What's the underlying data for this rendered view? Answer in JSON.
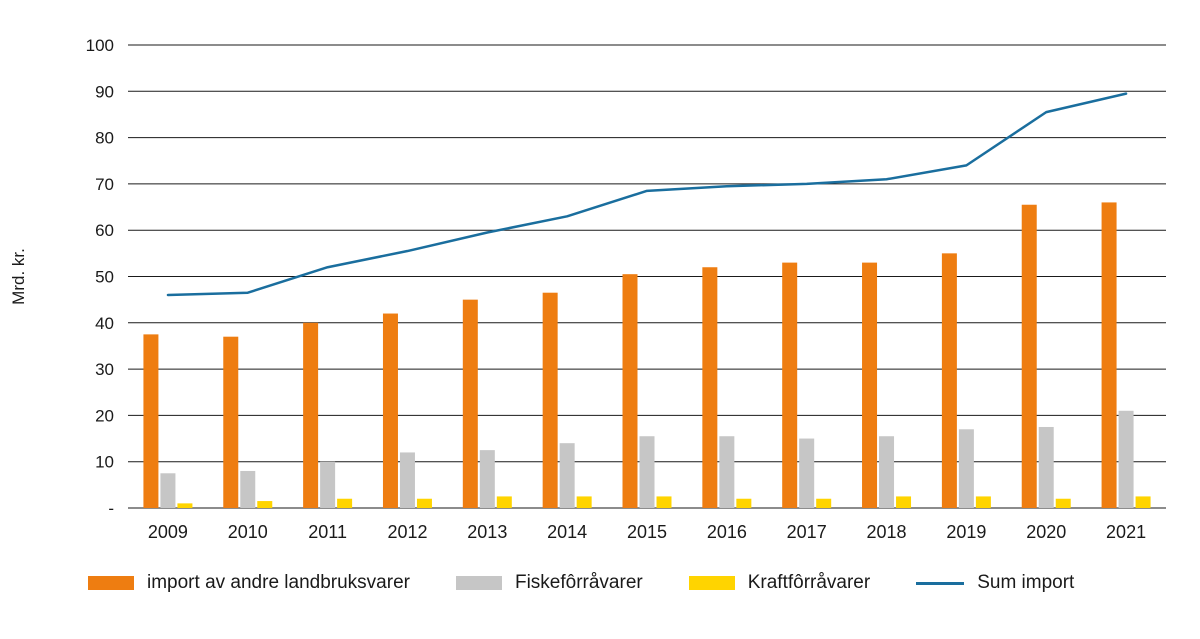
{
  "chart_data": {
    "type": "bar+line",
    "title": "",
    "xlabel": "",
    "ylabel": "Mrd. kr.",
    "ylim": [
      0,
      100
    ],
    "ytick_step": 10,
    "ytick_labels": [
      "-",
      "10",
      "20",
      "30",
      "40",
      "50",
      "60",
      "70",
      "80",
      "90",
      "100"
    ],
    "grid": true,
    "legend_position": "bottom",
    "categories": [
      "2009",
      "2010",
      "2011",
      "2012",
      "2013",
      "2014",
      "2015",
      "2016",
      "2017",
      "2018",
      "2019",
      "2020",
      "2021"
    ],
    "series": [
      {
        "name": "import av andre landbruksvarer",
        "type": "bar",
        "color": "#ee7d11",
        "values": [
          37.5,
          37,
          40,
          42,
          45,
          46.5,
          50.5,
          52,
          53,
          53,
          55,
          65.5,
          66
        ]
      },
      {
        "name": "Fiskefôrråvarer",
        "type": "bar",
        "color": "#c6c6c6",
        "values": [
          7.5,
          8,
          10,
          12,
          12.5,
          14,
          15.5,
          15.5,
          15,
          15.5,
          17,
          17.5,
          21
        ]
      },
      {
        "name": "Kraftfôrråvarer",
        "type": "bar",
        "color": "#ffd400",
        "values": [
          1,
          1.5,
          2,
          2,
          2.5,
          2.5,
          2.5,
          2,
          2,
          2.5,
          2.5,
          2,
          2.5
        ]
      },
      {
        "name": "Sum import",
        "type": "line",
        "color": "#1a6e9e",
        "values": [
          46,
          46.5,
          52,
          55.5,
          59.5,
          63,
          68.5,
          69.5,
          70,
          71,
          74,
          85.5,
          89.5
        ]
      }
    ],
    "axis_color": "#1a1a1a"
  }
}
